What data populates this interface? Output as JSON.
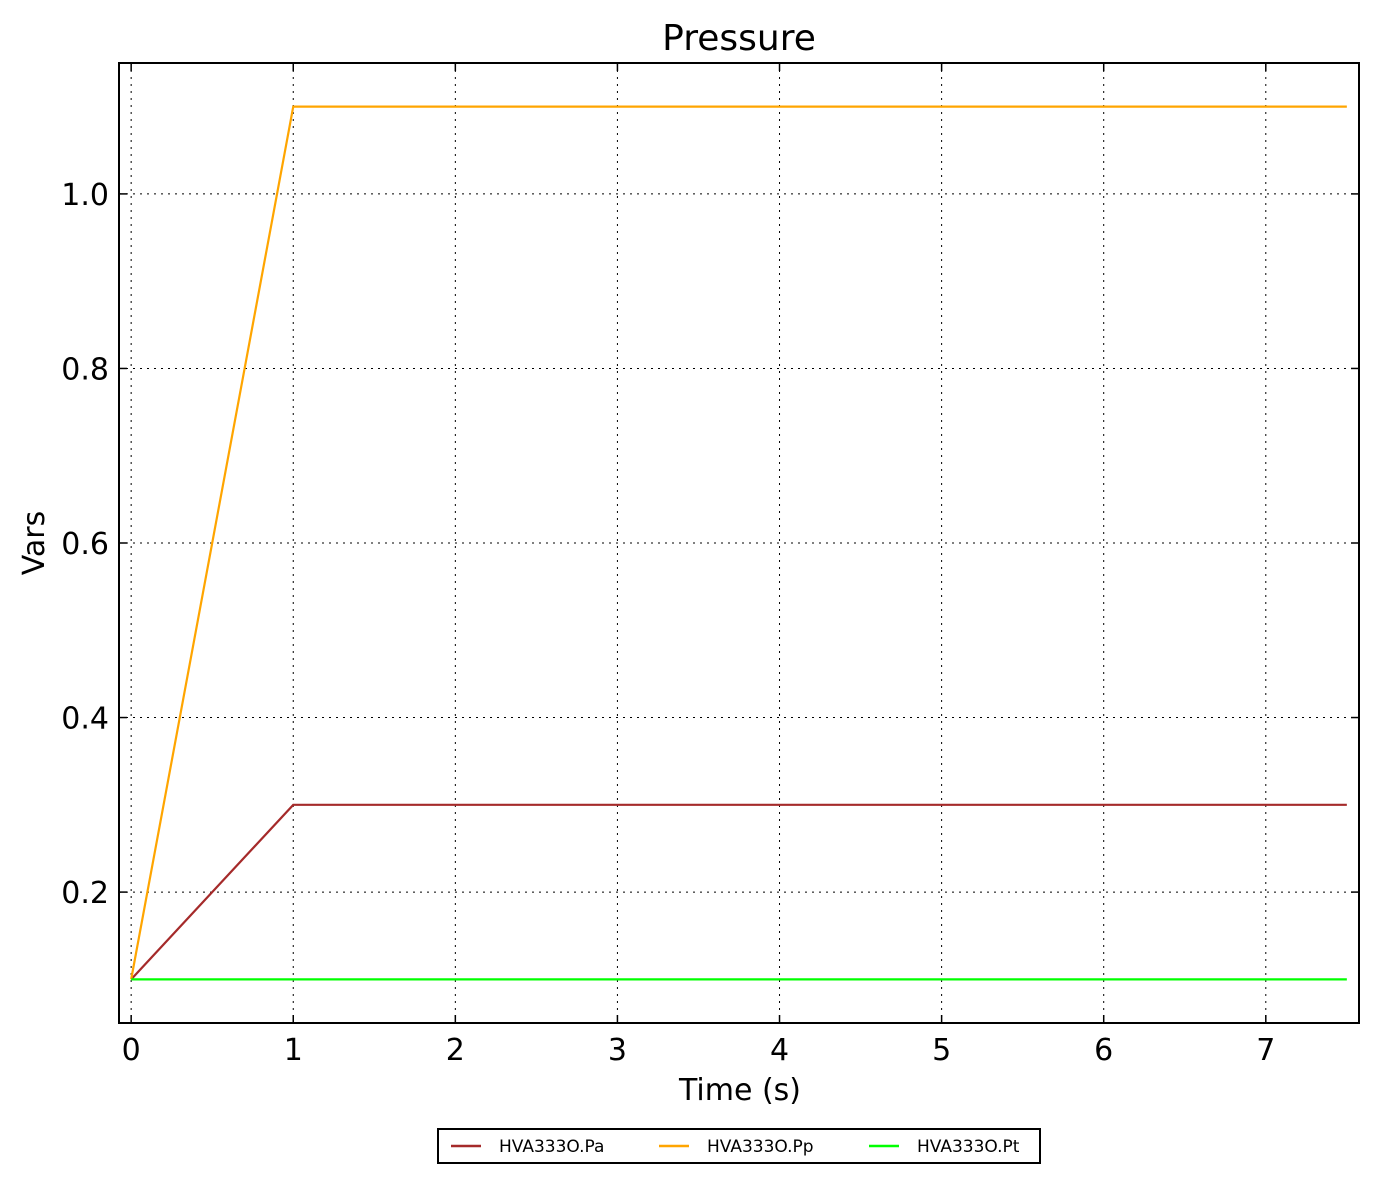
{
  "chart_data": {
    "type": "line",
    "title": "Pressure",
    "xlabel": "Time (s)",
    "ylabel": "Vars",
    "xlim": [
      -0.075,
      7.575
    ],
    "ylim": [
      0.05,
      1.15
    ],
    "xticks": [
      0,
      1,
      2,
      3,
      4,
      5,
      6,
      7
    ],
    "xtick_labels": [
      "0",
      "1",
      "2",
      "3",
      "4",
      "5",
      "6",
      "7"
    ],
    "yticks": [
      0.2,
      0.4,
      0.6,
      0.8,
      1.0
    ],
    "ytick_labels": [
      "0.2",
      "0.4",
      "0.6",
      "0.8",
      "1.0"
    ],
    "grid": true,
    "legend_placement": "bottom-center",
    "series": [
      {
        "name": "HVA333O.Pa",
        "color": "#a52a2a",
        "x": [
          0,
          1,
          7.5
        ],
        "y": [
          0.1,
          0.3,
          0.3
        ]
      },
      {
        "name": "HVA333O.Pp",
        "color": "#ffa500",
        "x": [
          0,
          1,
          7.5
        ],
        "y": [
          0.1,
          1.1,
          1.1
        ]
      },
      {
        "name": "HVA333O.Pt",
        "color": "#00ff00",
        "x": [
          0,
          1,
          7.5
        ],
        "y": [
          0.1,
          0.1,
          0.1
        ]
      }
    ]
  }
}
